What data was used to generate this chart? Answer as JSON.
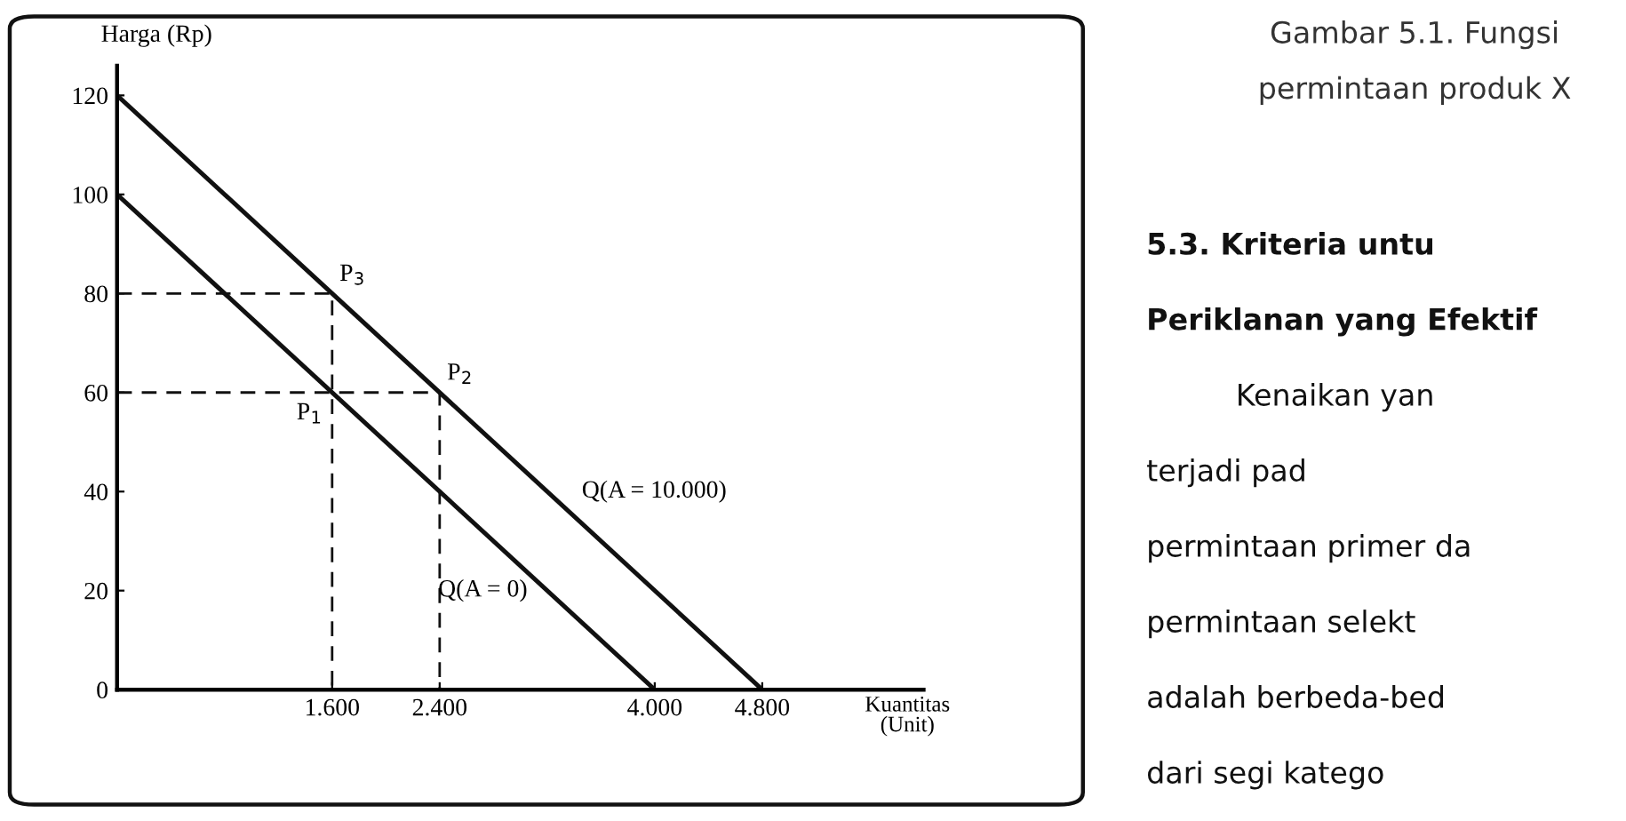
{
  "chart_data": {
    "type": "line",
    "title": "Gambar 5.1. Fungsi permintaan produk X",
    "xlabel": "Kuantitas\n(Unit)",
    "ylabel": "Harga (Rp)",
    "series": [
      {
        "color": "#111111",
        "x": [
          0,
          4000
        ],
        "values": [
          100,
          0
        ]
      },
      {
        "color": "#111111",
        "x": [
          0,
          4800
        ],
        "values": [
          120,
          0
        ]
      },
      {
        "color": "#111111",
        "x": [
          0,
          1600,
          1600
        ],
        "values": [
          80,
          80,
          0
        ],
        "line_style": "dashed"
      },
      {
        "color": "#111111",
        "x": [
          0,
          2400,
          2400
        ],
        "values": [
          60,
          60,
          0
        ],
        "line_style": "dashed"
      }
    ],
    "xlim": [
      0,
      6000
    ],
    "xticks": [
      {
        "value": 1600,
        "label": "1.600"
      },
      {
        "value": 2400,
        "label": "2.400"
      },
      {
        "value": 4000,
        "label": "4.000"
      },
      {
        "value": 4800,
        "label": "4.800"
      }
    ],
    "ylim": [
      0,
      126
    ],
    "yticks": [
      0,
      20,
      40,
      60,
      80,
      100,
      120
    ],
    "grid": false,
    "legend": false,
    "marker": "none",
    "annotations": [
      {
        "text": "Q(A = 10.000)",
        "x": 3200,
        "y": 40
      },
      {
        "text": "Q(A = 0)",
        "x": 3200,
        "y": 20
      },
      {
        "text": "P$_{3}$",
        "x": 1600,
        "y": 80
      },
      {
        "text": "P$_{2}$",
        "x": 2400,
        "y": 60
      },
      {
        "text": "P$_{1}$",
        "x": 1600,
        "y": 60
      },
      "5.3. Kriteria untu",
      "Periklanan yang Efektif",
      "Kenaikan yan",
      "terjadi pad",
      "permintaan primer da",
      "permintaan selekt",
      "adalah berbeda-bed",
      "dari segi katego"
    ]
  }
}
